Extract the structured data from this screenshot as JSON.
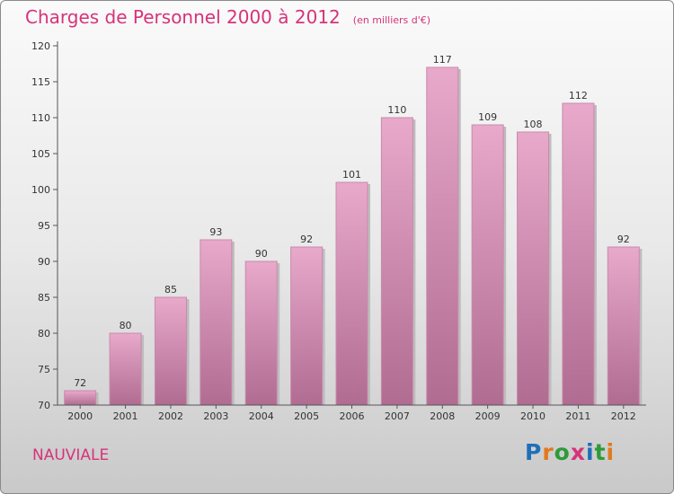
{
  "chart_data": {
    "type": "bar",
    "title": "Charges de Personnel 2000 à 2012",
    "subtitle": "(en milliers d'€)",
    "categories": [
      "2000",
      "2001",
      "2002",
      "2003",
      "2004",
      "2005",
      "2006",
      "2007",
      "2008",
      "2009",
      "2010",
      "2011",
      "2012"
    ],
    "values": [
      72,
      80,
      85,
      93,
      90,
      92,
      101,
      110,
      117,
      109,
      108,
      112,
      92
    ],
    "ylim": [
      70,
      120
    ],
    "yticks": [
      70,
      75,
      80,
      85,
      90,
      95,
      100,
      105,
      110,
      115,
      120
    ],
    "grid": false,
    "bar_color": "#d98fb6"
  },
  "commune": "NAUVIALE",
  "logo": {
    "letters": [
      "P",
      "r",
      "o",
      "x",
      "i",
      "t",
      "i"
    ],
    "colors": [
      "#1f6fb8",
      "#e07a1f",
      "#2e9a3a",
      "#d6337a",
      "#1f6fb8",
      "#2e9a3a",
      "#e07a1f"
    ]
  },
  "colors": {
    "accent": "#d6337a"
  }
}
